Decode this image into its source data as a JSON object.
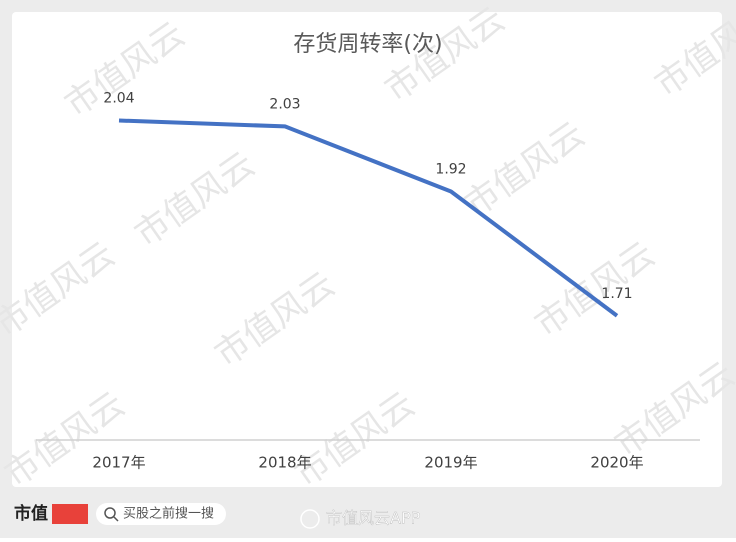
{
  "chart_data": {
    "type": "line",
    "title": "存货周转率(次)",
    "categories": [
      "2017年",
      "2018年",
      "2019年",
      "2020年"
    ],
    "series": [
      {
        "name": "存货周转率",
        "color": "#4472c4",
        "values": [
          2.04,
          2.03,
          1.92,
          1.71
        ]
      }
    ],
    "ylim": [
      1.5,
      2.1
    ]
  },
  "watermark": "市值风云",
  "footer": {
    "brand": "市值",
    "search": "买股之前搜一搜",
    "app": "市值风云APP"
  }
}
